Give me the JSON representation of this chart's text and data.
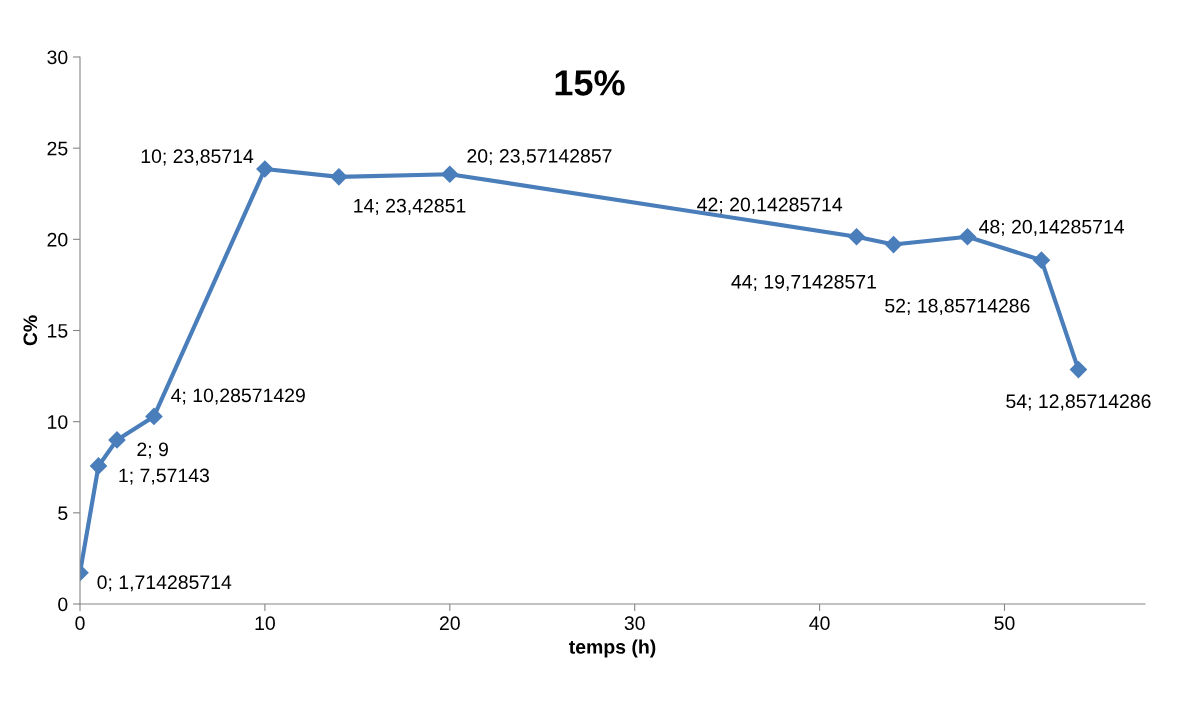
{
  "chart_data": {
    "type": "line",
    "title": "15%",
    "xlabel": "temps (h)",
    "ylabel": "C%",
    "x": [
      0,
      1,
      2,
      4,
      10,
      14,
      20,
      42,
      44,
      48,
      52,
      54
    ],
    "series": [
      {
        "color": "#4a7ebb",
        "values": [
          1.714285714,
          7.57143,
          9,
          10.28571429,
          23.85714,
          23.42851,
          23.57142857,
          20.14285714,
          19.71428571,
          20.14285714,
          18.85714286,
          12.85714286
        ],
        "value_labels": [
          "0; 1,714285714",
          "1; 7,57143",
          "2; 9",
          "4; 10,28571429",
          "10; 23,85714",
          "14; 23,42851",
          "20; 23,57142857",
          "42; 20,14285714",
          "44; 19,71428571",
          "48; 20,14285714",
          "52; 18,85714286",
          "54; 12,85714286"
        ]
      }
    ],
    "xlim": [
      0,
      57.6
    ],
    "xticks": [
      0,
      10,
      20,
      30,
      40,
      50
    ],
    "ylim": [
      0,
      30
    ],
    "yticks": [
      0,
      5,
      10,
      15,
      20,
      25,
      30
    ],
    "grid": false,
    "legend": false,
    "marker": "diamond",
    "line_style": "solid"
  }
}
